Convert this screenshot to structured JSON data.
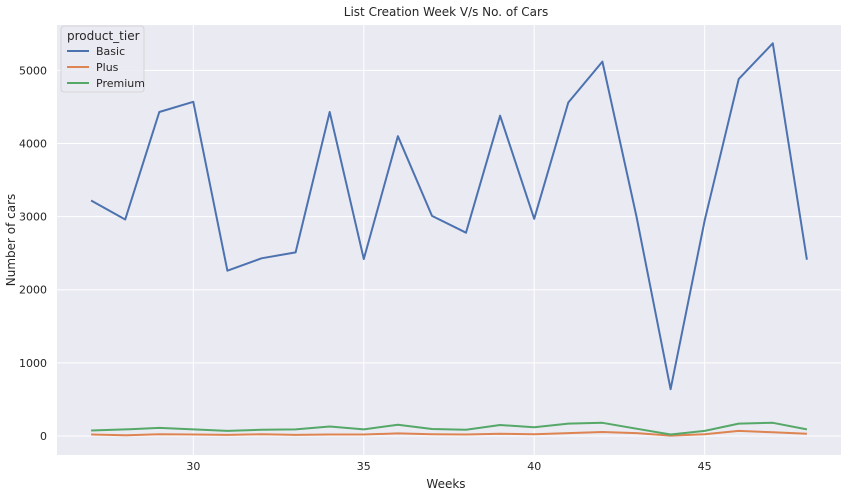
{
  "chart_data": {
    "type": "line",
    "title": "List Creation Week V/s No. of Cars",
    "xlabel": "Weeks",
    "ylabel": "Number of cars",
    "xlim": [
      26.0,
      49.0
    ],
    "ylim": [
      -260,
      5620
    ],
    "x_ticks": [
      30,
      35,
      40,
      45
    ],
    "y_ticks": [
      0,
      1000,
      2000,
      3000,
      4000,
      5000
    ],
    "grid": true,
    "legend": {
      "title": "product_tier",
      "placement": "top-left"
    },
    "x": [
      27,
      28,
      29,
      30,
      31,
      32,
      33,
      34,
      35,
      36,
      37,
      38,
      39,
      40,
      41,
      42,
      43,
      44,
      45,
      46,
      47,
      48
    ],
    "series": [
      {
        "name": "Basic",
        "color": "#4c72b0",
        "values": [
          3220,
          2960,
          4430,
          4570,
          2260,
          2430,
          2510,
          4430,
          2420,
          4100,
          3010,
          2780,
          4380,
          2970,
          4560,
          5120,
          3000,
          640,
          2950,
          4880,
          5370,
          2410
        ]
      },
      {
        "name": "Plus",
        "color": "#dd8452",
        "values": [
          20,
          10,
          25,
          20,
          15,
          25,
          15,
          20,
          20,
          35,
          25,
          20,
          30,
          25,
          40,
          55,
          40,
          5,
          25,
          70,
          50,
          30
        ]
      },
      {
        "name": "Premium",
        "color": "#55a868",
        "values": [
          75,
          90,
          110,
          90,
          70,
          85,
          90,
          130,
          90,
          155,
          95,
          85,
          150,
          120,
          170,
          180,
          100,
          20,
          70,
          170,
          180,
          90
        ]
      }
    ]
  }
}
